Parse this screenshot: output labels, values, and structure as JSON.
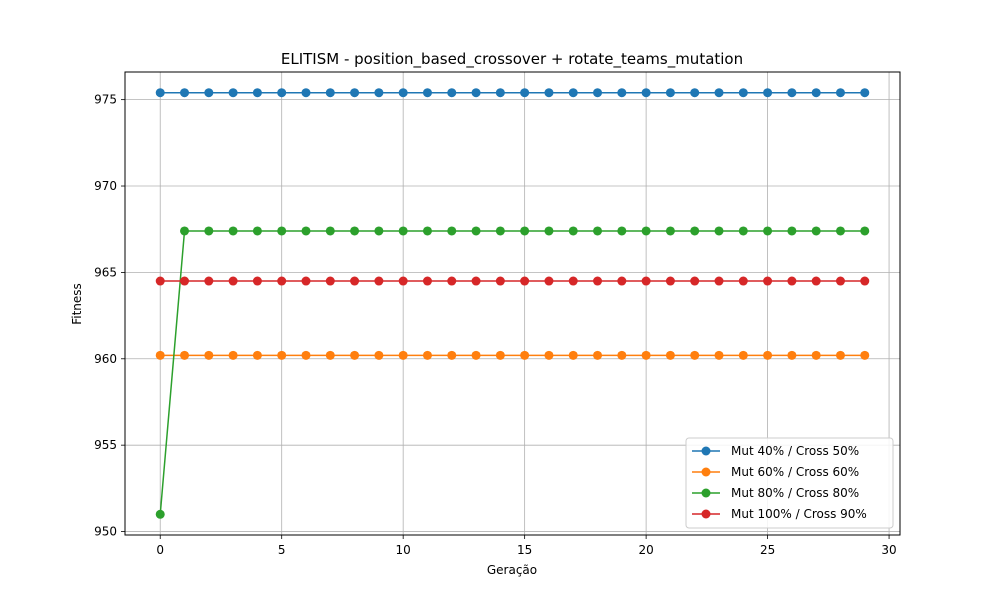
{
  "chart_data": {
    "type": "line",
    "title": "ELITISM - position_based_crossover + rotate_teams_mutation",
    "xlabel": "Geração",
    "ylabel": "Fitness",
    "xlim": [
      -1.45,
      30.45
    ],
    "ylim": [
      949.8,
      976.6
    ],
    "xticks": [
      0,
      5,
      10,
      15,
      20,
      25,
      30
    ],
    "yticks": [
      950,
      955,
      960,
      965,
      970,
      975
    ],
    "grid": true,
    "legend_position": "lower right",
    "x": [
      0,
      1,
      2,
      3,
      4,
      5,
      6,
      7,
      8,
      9,
      10,
      11,
      12,
      13,
      14,
      15,
      16,
      17,
      18,
      19,
      20,
      21,
      22,
      23,
      24,
      25,
      26,
      27,
      28,
      29
    ],
    "series": [
      {
        "name": "Mut 40% / Cross 50%",
        "color": "#1f77b4",
        "values": [
          975.4,
          975.4,
          975.4,
          975.4,
          975.4,
          975.4,
          975.4,
          975.4,
          975.4,
          975.4,
          975.4,
          975.4,
          975.4,
          975.4,
          975.4,
          975.4,
          975.4,
          975.4,
          975.4,
          975.4,
          975.4,
          975.4,
          975.4,
          975.4,
          975.4,
          975.4,
          975.4,
          975.4,
          975.4,
          975.4
        ]
      },
      {
        "name": "Mut 60% / Cross 60%",
        "color": "#ff7f0e",
        "values": [
          960.2,
          960.2,
          960.2,
          960.2,
          960.2,
          960.2,
          960.2,
          960.2,
          960.2,
          960.2,
          960.2,
          960.2,
          960.2,
          960.2,
          960.2,
          960.2,
          960.2,
          960.2,
          960.2,
          960.2,
          960.2,
          960.2,
          960.2,
          960.2,
          960.2,
          960.2,
          960.2,
          960.2,
          960.2,
          960.2
        ]
      },
      {
        "name": "Mut 80% / Cross 80%",
        "color": "#2ca02c",
        "values": [
          951.0,
          967.4,
          967.4,
          967.4,
          967.4,
          967.4,
          967.4,
          967.4,
          967.4,
          967.4,
          967.4,
          967.4,
          967.4,
          967.4,
          967.4,
          967.4,
          967.4,
          967.4,
          967.4,
          967.4,
          967.4,
          967.4,
          967.4,
          967.4,
          967.4,
          967.4,
          967.4,
          967.4,
          967.4,
          967.4
        ]
      },
      {
        "name": "Mut 100% / Cross 90%",
        "color": "#d62728",
        "values": [
          964.5,
          964.5,
          964.5,
          964.5,
          964.5,
          964.5,
          964.5,
          964.5,
          964.5,
          964.5,
          964.5,
          964.5,
          964.5,
          964.5,
          964.5,
          964.5,
          964.5,
          964.5,
          964.5,
          964.5,
          964.5,
          964.5,
          964.5,
          964.5,
          964.5,
          964.5,
          964.5,
          964.5,
          964.5,
          964.5
        ]
      }
    ]
  }
}
